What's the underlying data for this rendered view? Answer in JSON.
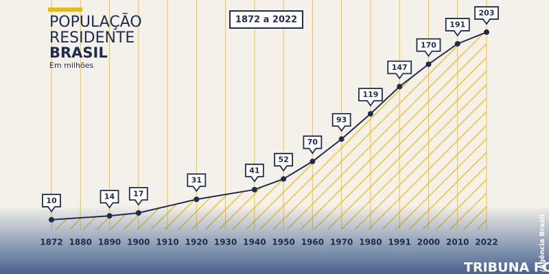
{
  "chart_data": {
    "type": "line",
    "title": [
      "POPULAÇÃO",
      "RESIDENTE",
      "BRASIL"
    ],
    "subtitle": "Em milhões",
    "annotation": "1872 a 2022",
    "x": [
      1872,
      1890,
      1900,
      1920,
      1940,
      1950,
      1960,
      1970,
      1980,
      1991,
      2000,
      2010,
      2022
    ],
    "values": [
      10,
      14,
      17,
      31,
      41,
      52,
      70,
      93,
      119,
      147,
      170,
      191,
      203
    ],
    "xticks": [
      1872,
      1880,
      1890,
      1900,
      1910,
      1920,
      1930,
      1940,
      1950,
      1960,
      1970,
      1980,
      1991,
      2000,
      2010,
      2022
    ],
    "ylim": [
      0,
      210
    ],
    "color": "#1d2c4e",
    "area_color": "#f2b705",
    "grid": true
  },
  "footer": {
    "brand": "TRIBUNA FOZ",
    "credit": "/Agência Brasil"
  }
}
